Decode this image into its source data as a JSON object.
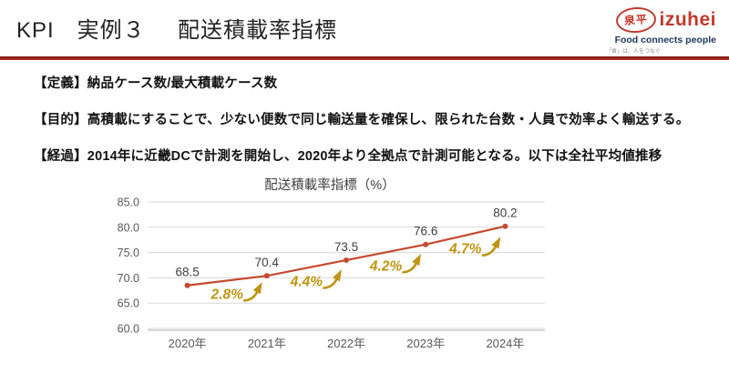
{
  "header": {
    "title_kpi": "KPI　実例３",
    "title_main": "配送積載率指標"
  },
  "logo": {
    "mark": "泉平",
    "name": "izuhei",
    "tagline": "Food connects people",
    "slogan": "「食」は、人をつなぐ"
  },
  "bullets": [
    "【定義】納品ケース数/最大積載ケース数",
    "【目的】高積載にすることで、少ない便数で同じ輸送量を確保し、限られた台数・人員で効率よく輸送する。",
    "【経過】2014年に近畿DCで計測を開始し、2020年より全拠点で計測可能となる。以下は全社平均値推移"
  ],
  "chart_data": {
    "type": "line",
    "title": "配送積載率指標（%）",
    "categories": [
      "2020年",
      "2021年",
      "2022年",
      "2023年",
      "2024年"
    ],
    "values": [
      68.5,
      70.4,
      73.5,
      76.6,
      80.2
    ],
    "pct_changes": [
      "2.8%",
      "4.4%",
      "4.2%",
      "4.7%"
    ],
    "ylim": [
      60,
      85
    ],
    "ytick_step": 5,
    "ytick_labels": [
      "85.0",
      "80.0",
      "75.0",
      "70.0",
      "65.0",
      "60.0"
    ],
    "grid": true,
    "legend": "none",
    "line_color": "#c5492f",
    "marker_color": "#c5492f",
    "annotation_color": "#bf9511",
    "value_label_color": "#3f3f3f",
    "axis_label_color": "#595959",
    "grid_color": "#d9d9d9",
    "axis_line_color": "#bfbfbf",
    "title_color": "#404040"
  }
}
